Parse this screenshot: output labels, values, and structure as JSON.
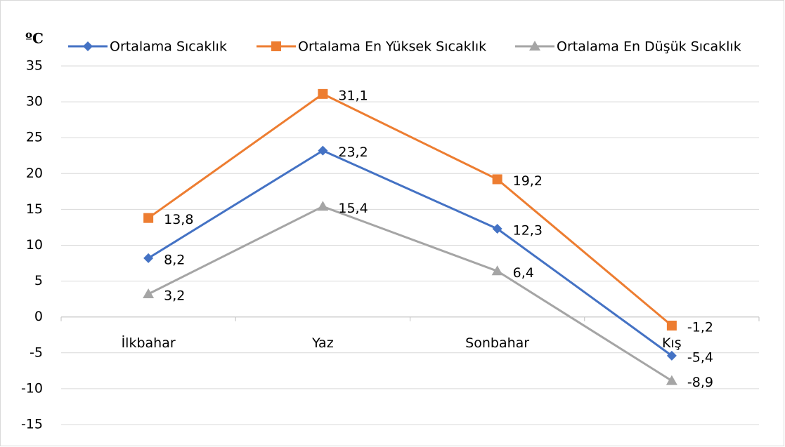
{
  "chart_data": {
    "type": "line",
    "y_label": "ºC",
    "categories": [
      "İlkbahar",
      "Yaz",
      "Sonbahar",
      "Kış"
    ],
    "series": [
      {
        "name": "Ortalama Sıcaklık",
        "color": "#4472c4",
        "marker": "diamond",
        "values": [
          8.2,
          23.2,
          12.3,
          -5.4
        ],
        "value_labels": [
          "8,2",
          "23,2",
          "12,3",
          "-5,4"
        ]
      },
      {
        "name": "Ortalama En Yüksek Sıcaklık",
        "color": "#ed7d31",
        "marker": "square",
        "values": [
          13.8,
          31.1,
          19.2,
          -1.2
        ],
        "value_labels": [
          "13,8",
          "31,1",
          "19,2",
          "-1,2"
        ]
      },
      {
        "name": "Ortalama En Düşük Sıcaklık",
        "color": "#a5a5a5",
        "marker": "triangle",
        "values": [
          3.2,
          15.4,
          6.4,
          -8.9
        ],
        "value_labels": [
          "3,2",
          "15,4",
          "6,4",
          "-8,9"
        ]
      }
    ],
    "ylim": [
      -15,
      35
    ],
    "yticks": [
      -15,
      -10,
      -5,
      0,
      5,
      10,
      15,
      20,
      25,
      30,
      35
    ],
    "grid": true,
    "legend": "top"
  }
}
